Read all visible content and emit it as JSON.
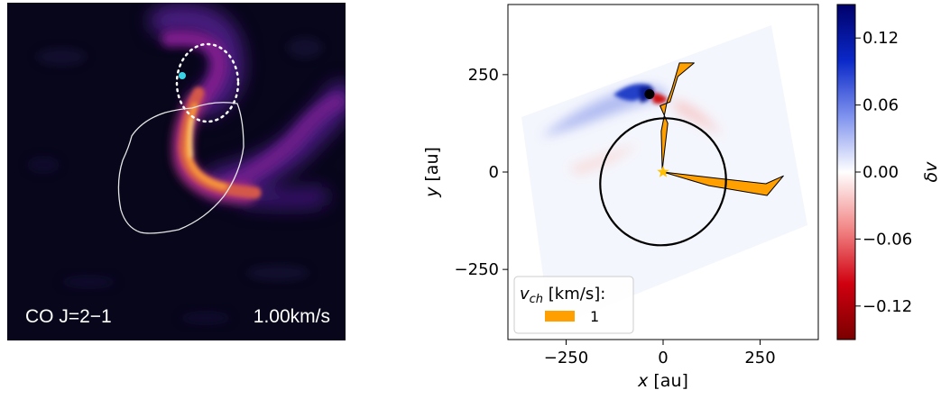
{
  "left_panel": {
    "line_label": "CO J=2−1",
    "velocity_label": "1.00km/s",
    "background_color": "#07061a",
    "colormap": [
      "#000004",
      "#2d0c5c",
      "#7e1f8d",
      "#cb4a62",
      "#f6923a",
      "#fcf0a6"
    ],
    "marker_color": "#39d4e6"
  },
  "chart_data": [
    {
      "type": "heatmap",
      "x": {
        "label_symbol": "x",
        "label_unit": " [au]",
        "lim": [
          -400,
          400
        ],
        "ticks": [
          -250,
          0,
          250
        ],
        "tick_labels": [
          "−250",
          "0",
          "250"
        ]
      },
      "y": {
        "label_symbol": "y",
        "label_unit": " [au]",
        "lim": [
          -430,
          430
        ],
        "ticks": [
          -250,
          0,
          250
        ],
        "tick_labels": [
          "−250",
          "0",
          "250"
        ]
      },
      "orbit_ellipse": {
        "center": [
          0,
          -25
        ],
        "rx": 160,
        "ry": 165,
        "rotation_deg": 36,
        "color": "#000000"
      },
      "planet": {
        "x": -35,
        "y": 200,
        "color": "#000000"
      },
      "star": {
        "x": 0,
        "y": 0,
        "color": "#ffc107"
      },
      "channel_contour": {
        "color": "#ffa000",
        "upper_arm": [
          [
            -2,
            5
          ],
          [
            12,
            125
          ],
          [
            -8,
            170
          ],
          [
            18,
            180
          ],
          [
            38,
            245
          ],
          [
            80,
            280
          ],
          [
            42,
            280
          ],
          [
            22,
            212
          ],
          [
            10,
            180
          ],
          [
            -5,
            105
          ],
          [
            -2,
            5
          ]
        ],
        "lower_arm": [
          [
            0,
            0
          ],
          [
            118,
            -35
          ],
          [
            268,
            -60
          ],
          [
            310,
            -10
          ],
          [
            265,
            -30
          ],
          [
            130,
            -15
          ],
          [
            0,
            0
          ]
        ]
      },
      "velocity_field": {
        "blue_region": {
          "color": "#1030b0",
          "peak": [
            -50,
            210
          ]
        },
        "red_region": {
          "color": "#d01818",
          "peak": [
            -20,
            195
          ]
        }
      },
      "legend": {
        "title_symbol": "v",
        "title_sub": "ch",
        "title_unit": " [km/s]:",
        "entries": [
          "1"
        ],
        "placement": "lower-left"
      },
      "colorbar": {
        "label": "δv",
        "range": [
          -0.15,
          0.15
        ],
        "ticks": [
          0.12,
          0.06,
          0.0,
          -0.06,
          -0.12
        ],
        "tick_labels": [
          "0.12",
          "0.06",
          "0.00",
          "−0.06",
          "−0.12"
        ],
        "colors": [
          "#00006a",
          "#0a28c8",
          "#7f92ee",
          "#ffffff",
          "#f28888",
          "#d00010",
          "#7a0000"
        ]
      }
    }
  ]
}
